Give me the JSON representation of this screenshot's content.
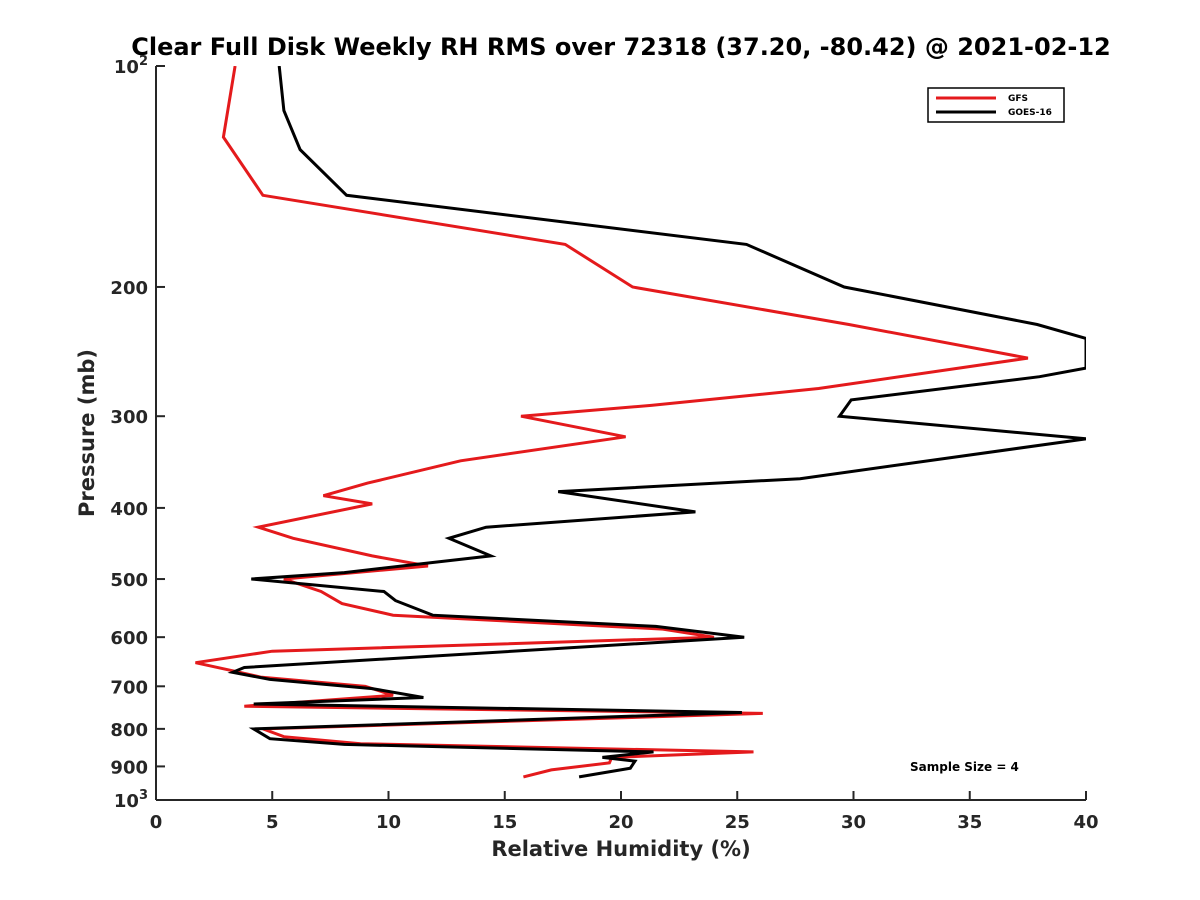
{
  "chart_data": {
    "type": "line",
    "title": "Clear Full Disk Weekly RH RMS over 72318 (37.20, -80.42) @ 2021-02-12",
    "xlabel": "Relative Humidity (%)",
    "ylabel": "Pressure (mb)",
    "xlim": [
      0,
      40
    ],
    "ylim": [
      100,
      1000
    ],
    "y_scale": "log",
    "y_reversed": true,
    "x_ticks": [
      0,
      5,
      10,
      15,
      20,
      25,
      30,
      35,
      40
    ],
    "y_ticks": [
      {
        "value": 100,
        "base": "10",
        "exp": "2"
      },
      {
        "value": 200,
        "label": "200"
      },
      {
        "value": 300,
        "label": "300"
      },
      {
        "value": 400,
        "label": "400"
      },
      {
        "value": 500,
        "label": "500"
      },
      {
        "value": 600,
        "label": "600"
      },
      {
        "value": 700,
        "label": "700"
      },
      {
        "value": 800,
        "label": "800"
      },
      {
        "value": 900,
        "label": "900"
      },
      {
        "value": 1000,
        "base": "10",
        "exp": "3"
      }
    ],
    "grid": false,
    "legend_position": "top-right",
    "annotation": "Sample Size = 4",
    "series": [
      {
        "name": "GFS",
        "color": "#e41a1c",
        "points": [
          [
            3.4,
            100
          ],
          [
            2.9,
            125
          ],
          [
            4.6,
            150
          ],
          [
            17.6,
            175
          ],
          [
            20.5,
            200
          ],
          [
            29.8,
            225
          ],
          [
            37.5,
            250
          ],
          [
            28.5,
            275
          ],
          [
            21.3,
            290
          ],
          [
            15.7,
            300
          ],
          [
            20.2,
            320
          ],
          [
            13.1,
            345
          ],
          [
            9.1,
            370
          ],
          [
            7.2,
            385
          ],
          [
            9.3,
            395
          ],
          [
            4.4,
            425
          ],
          [
            5.9,
            440
          ],
          [
            9.3,
            465
          ],
          [
            11.7,
            480
          ],
          [
            5.5,
            500
          ],
          [
            7.1,
            520
          ],
          [
            8.0,
            540
          ],
          [
            10.2,
            560
          ],
          [
            21.8,
            585
          ],
          [
            24.0,
            600
          ],
          [
            5.0,
            627
          ],
          [
            1.7,
            650
          ],
          [
            3.6,
            670
          ],
          [
            4.5,
            680
          ],
          [
            9.0,
            700
          ],
          [
            10.2,
            720
          ],
          [
            3.8,
            745
          ],
          [
            26.1,
            762
          ],
          [
            4.6,
            800
          ],
          [
            5.5,
            820
          ],
          [
            8.8,
            838
          ],
          [
            25.7,
            860
          ],
          [
            19.6,
            875
          ],
          [
            19.5,
            890
          ],
          [
            17.0,
            910
          ],
          [
            15.8,
            930
          ]
        ]
      },
      {
        "name": "GOES-16",
        "color": "#000000",
        "points": [
          [
            5.3,
            100
          ],
          [
            5.5,
            115
          ],
          [
            6.2,
            130
          ],
          [
            8.2,
            150
          ],
          [
            25.4,
            175
          ],
          [
            29.6,
            200
          ],
          [
            37.9,
            225
          ],
          [
            40.0,
            235
          ],
          [
            40.0,
            258
          ],
          [
            38.0,
            265
          ],
          [
            29.9,
            285
          ],
          [
            29.4,
            300
          ],
          [
            40.0,
            322
          ],
          [
            27.7,
            365
          ],
          [
            17.3,
            380
          ],
          [
            23.2,
            405
          ],
          [
            14.2,
            425
          ],
          [
            12.6,
            440
          ],
          [
            14.4,
            465
          ],
          [
            8.1,
            490
          ],
          [
            4.1,
            500
          ],
          [
            9.8,
            520
          ],
          [
            10.3,
            535
          ],
          [
            11.9,
            560
          ],
          [
            21.5,
            580
          ],
          [
            25.3,
            600
          ],
          [
            3.8,
            660
          ],
          [
            3.3,
            670
          ],
          [
            4.9,
            685
          ],
          [
            9.3,
            705
          ],
          [
            11.5,
            725
          ],
          [
            4.2,
            740
          ],
          [
            25.2,
            760
          ],
          [
            4.2,
            800
          ],
          [
            4.9,
            825
          ],
          [
            8.1,
            840
          ],
          [
            21.4,
            860
          ],
          [
            19.2,
            875
          ],
          [
            20.6,
            885
          ],
          [
            20.4,
            905
          ],
          [
            18.2,
            930
          ]
        ]
      }
    ]
  }
}
